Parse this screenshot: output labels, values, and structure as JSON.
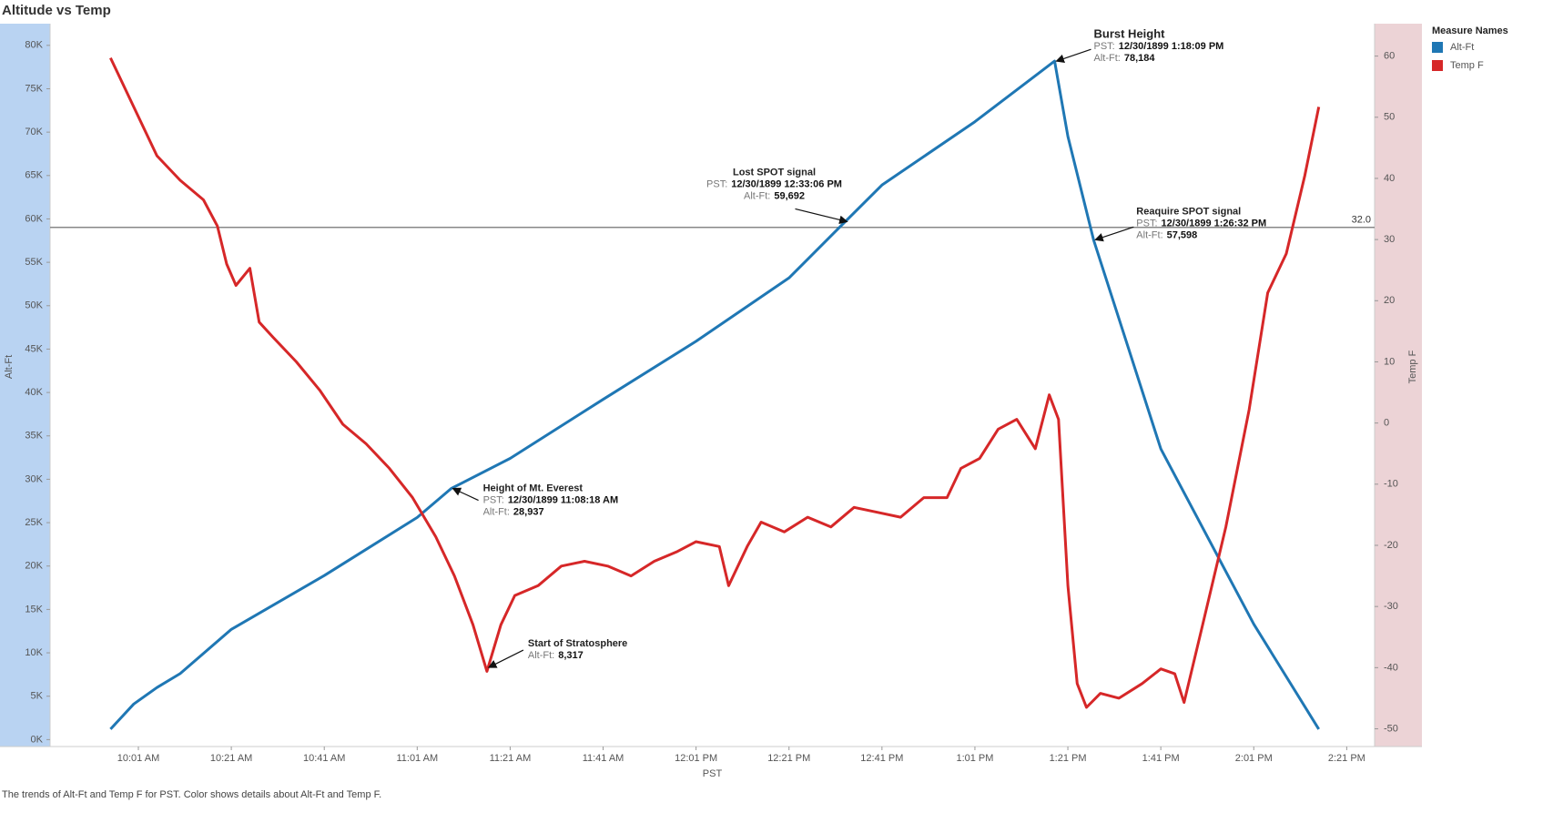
{
  "chart_data": {
    "type": "line",
    "title": "Altitude vs Temp",
    "caption": "The trends of Alt-Ft and Temp F for PST.  Color shows details about Alt-Ft and Temp F.",
    "xlabel": "PST",
    "ylabel": "Alt-Ft",
    "y2label": "Temp F",
    "legend_title": "Measure Names",
    "legend": "right",
    "xlim": [
      "09:42",
      "14:27"
    ],
    "xticks": [
      {
        "value": "10:01",
        "label": "10:01 AM"
      },
      {
        "value": "10:21",
        "label": "10:21 AM"
      },
      {
        "value": "10:41",
        "label": "10:41 AM"
      },
      {
        "value": "11:01",
        "label": "11:01 AM"
      },
      {
        "value": "11:21",
        "label": "11:21 AM"
      },
      {
        "value": "11:41",
        "label": "11:41 AM"
      },
      {
        "value": "12:01",
        "label": "12:01 PM"
      },
      {
        "value": "12:21",
        "label": "12:21 PM"
      },
      {
        "value": "12:41",
        "label": "12:41 PM"
      },
      {
        "value": "13:01",
        "label": "1:01 PM"
      },
      {
        "value": "13:21",
        "label": "1:21 PM"
      },
      {
        "value": "13:41",
        "label": "1:41 PM"
      },
      {
        "value": "14:01",
        "label": "2:01 PM"
      },
      {
        "value": "14:21",
        "label": "2:21 PM"
      }
    ],
    "ylim": [
      -800,
      82500
    ],
    "yticks": [
      {
        "value": 0,
        "label": "0K"
      },
      {
        "value": 5000,
        "label": "5K"
      },
      {
        "value": 10000,
        "label": "10K"
      },
      {
        "value": 15000,
        "label": "15K"
      },
      {
        "value": 20000,
        "label": "20K"
      },
      {
        "value": 25000,
        "label": "25K"
      },
      {
        "value": 30000,
        "label": "30K"
      },
      {
        "value": 35000,
        "label": "35K"
      },
      {
        "value": 40000,
        "label": "40K"
      },
      {
        "value": 45000,
        "label": "45K"
      },
      {
        "value": 50000,
        "label": "50K"
      },
      {
        "value": 55000,
        "label": "55K"
      },
      {
        "value": 60000,
        "label": "60K"
      },
      {
        "value": 65000,
        "label": "65K"
      },
      {
        "value": 70000,
        "label": "70K"
      },
      {
        "value": 75000,
        "label": "75K"
      },
      {
        "value": 80000,
        "label": "80K"
      }
    ],
    "y2lim": [
      -52.9,
      65.3
    ],
    "y2ticks": [
      -50,
      -40,
      -30,
      -20,
      -10,
      0,
      10,
      20,
      30,
      40,
      50,
      60
    ],
    "reference_line": {
      "axis": "y2",
      "value": 32,
      "label": "32.0"
    },
    "series": [
      {
        "name": "Alt-Ft",
        "color": "#1f77b4",
        "axis": "y",
        "x": [
          "09:55",
          "10:00",
          "10:05",
          "10:10",
          "10:21",
          "10:41",
          "11:01",
          "11:08:18",
          "11:21",
          "11:41",
          "12:01",
          "12:21",
          "12:33:06",
          "12:41",
          "13:01",
          "13:18:09",
          "13:21",
          "13:26:32",
          "13:41",
          "14:01",
          "14:15"
        ],
        "values": [
          1200,
          4100,
          6000,
          7600,
          12700,
          18900,
          25600,
          28937,
          32400,
          39200,
          45900,
          53200,
          59692,
          63900,
          71200,
          78184,
          69500,
          57598,
          33500,
          13300,
          1200
        ]
      },
      {
        "name": "Temp F",
        "color": "#d62728",
        "axis": "y2",
        "x": [
          "09:55",
          "10:00",
          "10:05",
          "10:10",
          "10:15",
          "10:18",
          "10:20",
          "10:22",
          "10:25",
          "10:27",
          "10:30",
          "10:35",
          "10:40",
          "10:45",
          "10:50",
          "10:55",
          "11:00",
          "11:05",
          "11:09",
          "11:13",
          "11:16",
          "11:19",
          "11:22",
          "11:27",
          "11:32",
          "11:37",
          "11:42",
          "11:47",
          "11:52",
          "11:57",
          "12:01",
          "12:06",
          "12:08",
          "12:12",
          "12:15",
          "12:20",
          "12:25",
          "12:30",
          "12:35",
          "12:40",
          "12:45",
          "12:50",
          "12:55",
          "12:58",
          "13:02",
          "13:06",
          "13:10",
          "13:14",
          "13:17",
          "13:19",
          "13:21",
          "13:23",
          "13:25",
          "13:28",
          "13:32",
          "13:37",
          "13:41",
          "13:44",
          "13:46",
          "13:50",
          "13:55",
          "14:00",
          "14:04",
          "14:08",
          "14:12",
          "14:15"
        ],
        "values": [
          59.7,
          51.7,
          43.7,
          39.7,
          36.5,
          32.2,
          26,
          22.5,
          25.3,
          16.5,
          14,
          10,
          5.4,
          -0.2,
          -3.4,
          -7.4,
          -12.2,
          -18.6,
          -25,
          -33,
          -40.6,
          -33,
          -28.2,
          -26.6,
          -23.4,
          -22.6,
          -23.4,
          -25,
          -22.6,
          -21,
          -19.4,
          -20.2,
          -26.6,
          -20.2,
          -16.2,
          -17.8,
          -15.4,
          -17,
          -13.8,
          -14.6,
          -15.4,
          -12.2,
          -12.2,
          -7.4,
          -5.8,
          -1,
          0.6,
          -4.2,
          4.6,
          0.6,
          -26.6,
          -42.6,
          -46.5,
          -44.2,
          -45,
          -42.6,
          -40.2,
          -41,
          -45.7,
          -33,
          -17,
          2.2,
          21.3,
          27.7,
          40.5,
          51.7
        ]
      }
    ],
    "annotations": [
      {
        "title": "Burst Height",
        "x": "13:18:09",
        "y": 78184,
        "lines": [
          {
            "label": "PST:",
            "value": "12/30/1899 1:18:09 PM"
          },
          {
            "label": "Alt-Ft:",
            "value": "78,184"
          }
        ]
      },
      {
        "title": "Lost SPOT signal",
        "x": "12:33:06",
        "y": 59692,
        "lines": [
          {
            "label": "PST:",
            "value": "12/30/1899 12:33:06 PM"
          },
          {
            "label": "Alt-Ft:",
            "value": "59,692"
          }
        ]
      },
      {
        "title": "Reaquire SPOT signal",
        "x": "13:26:32",
        "y": 57598,
        "lines": [
          {
            "label": "PST:",
            "value": "12/30/1899 1:26:32 PM"
          },
          {
            "label": "Alt-Ft:",
            "value": "57,598"
          }
        ]
      },
      {
        "title": "Height of Mt. Everest",
        "x": "11:08:18",
        "y": 28937,
        "lines": [
          {
            "label": "PST:",
            "value": "12/30/1899 11:08:18 AM"
          },
          {
            "label": "Alt-Ft:",
            "value": "28,937"
          }
        ]
      },
      {
        "title": "Start of Stratosphere",
        "x": "11:16",
        "y": 8317,
        "lines": [
          {
            "label": "Alt-Ft:",
            "value": "8,317"
          }
        ]
      }
    ]
  }
}
